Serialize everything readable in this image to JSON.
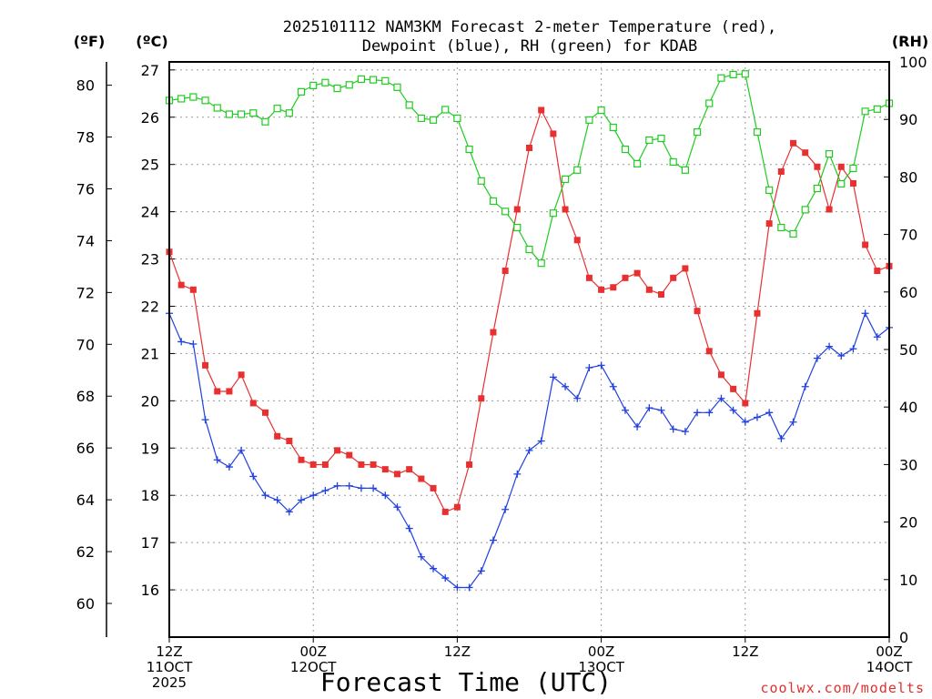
{
  "title_line1": "2025101112 NAM3KM Forecast 2-meter Temperature (red),",
  "title_line2": "Dewpoint (blue), RH (green) for KDAB",
  "chart_data": {
    "type": "line",
    "title": "2025101112 NAM3KM Forecast 2-meter Temperature (red), Dewpoint (blue), RH (green) for KDAB",
    "xlabel": "Forecast Time (UTC)",
    "x_unit": "forecast hour (0 = 12Z 11OCT 2025)",
    "xlim": [
      0,
      60
    ],
    "x_ticks": [
      {
        "hour": 0,
        "lines": [
          "12Z",
          "11OCT",
          "2025"
        ]
      },
      {
        "hour": 12,
        "lines": [
          "00Z",
          "12OCT"
        ]
      },
      {
        "hour": 24,
        "lines": [
          "12Z"
        ]
      },
      {
        "hour": 36,
        "lines": [
          "00Z",
          "13OCT"
        ]
      },
      {
        "hour": 48,
        "lines": [
          "12Z"
        ]
      },
      {
        "hour": 60,
        "lines": [
          "00Z",
          "14OCT"
        ]
      }
    ],
    "axes": {
      "fahrenheit": {
        "label": "(ºF)",
        "min": 58.7,
        "max": 80.9,
        "ticks": [
          60,
          62,
          64,
          66,
          68,
          70,
          72,
          74,
          76,
          78,
          80
        ]
      },
      "celsius": {
        "label": "(ºC)",
        "min": 15,
        "max": 27.17,
        "ticks": [
          16,
          17,
          18,
          19,
          20,
          21,
          22,
          23,
          24,
          25,
          26,
          27
        ]
      },
      "rh": {
        "label": "(RH)",
        "min": 0,
        "max": 100,
        "ticks": [
          0,
          10,
          20,
          30,
          40,
          50,
          60,
          70,
          80,
          90,
          100
        ]
      }
    },
    "grid": true,
    "series": [
      {
        "name": "2-meter Temperature",
        "unit": "°C",
        "color": "#e83030",
        "marker": "filled-square",
        "values": [
          [
            0,
            23.15
          ],
          [
            1,
            22.45
          ],
          [
            2,
            22.35
          ],
          [
            3,
            20.75
          ],
          [
            4,
            20.2
          ],
          [
            5,
            20.2
          ],
          [
            6,
            20.55
          ],
          [
            7,
            19.95
          ],
          [
            8,
            19.75
          ],
          [
            9,
            19.25
          ],
          [
            10,
            19.15
          ],
          [
            11,
            18.75
          ],
          [
            12,
            18.65
          ],
          [
            13,
            18.65
          ],
          [
            14,
            18.95
          ],
          [
            15,
            18.85
          ],
          [
            16,
            18.65
          ],
          [
            17,
            18.65
          ],
          [
            18,
            18.55
          ],
          [
            19,
            18.45
          ],
          [
            20,
            18.55
          ],
          [
            21,
            18.35
          ],
          [
            22,
            18.15
          ],
          [
            23,
            17.65
          ],
          [
            24,
            17.75
          ],
          [
            25,
            18.65
          ],
          [
            26,
            20.05
          ],
          [
            27,
            21.45
          ],
          [
            28,
            22.75
          ],
          [
            29,
            24.05
          ],
          [
            30,
            25.35
          ],
          [
            31,
            26.15
          ],
          [
            32,
            25.65
          ],
          [
            33,
            24.05
          ],
          [
            34,
            23.4
          ],
          [
            35,
            22.6
          ],
          [
            36,
            22.35
          ],
          [
            37,
            22.4
          ],
          [
            38,
            22.6
          ],
          [
            39,
            22.7
          ],
          [
            40,
            22.35
          ],
          [
            41,
            22.25
          ],
          [
            42,
            22.6
          ],
          [
            43,
            22.8
          ],
          [
            44,
            21.9
          ],
          [
            45,
            21.05
          ],
          [
            46,
            20.55
          ],
          [
            47,
            20.25
          ],
          [
            48,
            19.95
          ],
          [
            49,
            21.85
          ],
          [
            50,
            23.75
          ],
          [
            51,
            24.85
          ],
          [
            52,
            25.45
          ],
          [
            53,
            25.25
          ],
          [
            54,
            24.95
          ],
          [
            55,
            24.05
          ],
          [
            56,
            24.95
          ],
          [
            57,
            24.6
          ],
          [
            58,
            23.3
          ],
          [
            59,
            22.75
          ],
          [
            60,
            22.85
          ]
        ]
      },
      {
        "name": "Dewpoint",
        "unit": "°C",
        "color": "#2040e0",
        "marker": "plus",
        "values": [
          [
            0,
            21.85
          ],
          [
            1,
            21.25
          ],
          [
            2,
            21.2
          ],
          [
            3,
            19.6
          ],
          [
            4,
            18.75
          ],
          [
            5,
            18.6
          ],
          [
            6,
            18.95
          ],
          [
            7,
            18.4
          ],
          [
            8,
            18.0
          ],
          [
            9,
            17.9
          ],
          [
            10,
            17.65
          ],
          [
            11,
            17.9
          ],
          [
            12,
            18.0
          ],
          [
            13,
            18.1
          ],
          [
            14,
            18.2
          ],
          [
            15,
            18.2
          ],
          [
            16,
            18.15
          ],
          [
            17,
            18.15
          ],
          [
            18,
            18.0
          ],
          [
            19,
            17.75
          ],
          [
            20,
            17.3
          ],
          [
            21,
            16.7
          ],
          [
            22,
            16.45
          ],
          [
            23,
            16.25
          ],
          [
            24,
            16.05
          ],
          [
            25,
            16.05
          ],
          [
            26,
            16.4
          ],
          [
            27,
            17.05
          ],
          [
            28,
            17.7
          ],
          [
            29,
            18.45
          ],
          [
            30,
            18.95
          ],
          [
            31,
            19.15
          ],
          [
            32,
            20.5
          ],
          [
            33,
            20.3
          ],
          [
            34,
            20.05
          ],
          [
            35,
            20.7
          ],
          [
            36,
            20.75
          ],
          [
            37,
            20.3
          ],
          [
            38,
            19.8
          ],
          [
            39,
            19.45
          ],
          [
            40,
            19.85
          ],
          [
            41,
            19.8
          ],
          [
            42,
            19.4
          ],
          [
            43,
            19.35
          ],
          [
            44,
            19.75
          ],
          [
            45,
            19.75
          ],
          [
            46,
            20.05
          ],
          [
            47,
            19.8
          ],
          [
            48,
            19.55
          ],
          [
            49,
            19.65
          ],
          [
            50,
            19.75
          ],
          [
            51,
            19.2
          ],
          [
            52,
            19.55
          ],
          [
            53,
            20.3
          ],
          [
            54,
            20.9
          ],
          [
            55,
            21.15
          ],
          [
            56,
            20.95
          ],
          [
            57,
            21.1
          ],
          [
            58,
            21.85
          ],
          [
            59,
            21.35
          ],
          [
            60,
            21.55
          ]
        ]
      },
      {
        "name": "RH",
        "unit": "%",
        "color": "#20cc20",
        "marker": "open-square",
        "values": [
          [
            0,
            93.3
          ],
          [
            1,
            93.6
          ],
          [
            2,
            93.9
          ],
          [
            3,
            93.3
          ],
          [
            4,
            92.0
          ],
          [
            5,
            90.9
          ],
          [
            6,
            90.9
          ],
          [
            7,
            91.1
          ],
          [
            8,
            89.6
          ],
          [
            9,
            91.9
          ],
          [
            10,
            91.1
          ],
          [
            11,
            94.8
          ],
          [
            12,
            95.9
          ],
          [
            13,
            96.4
          ],
          [
            14,
            95.4
          ],
          [
            15,
            96.0
          ],
          [
            16,
            97.0
          ],
          [
            17,
            96.9
          ],
          [
            18,
            96.7
          ],
          [
            19,
            95.6
          ],
          [
            20,
            92.5
          ],
          [
            21,
            90.2
          ],
          [
            22,
            89.9
          ],
          [
            23,
            91.7
          ],
          [
            24,
            90.2
          ],
          [
            25,
            84.8
          ],
          [
            26,
            79.3
          ],
          [
            27,
            75.8
          ],
          [
            28,
            74.0
          ],
          [
            29,
            71.2
          ],
          [
            30,
            67.4
          ],
          [
            31,
            65.0
          ],
          [
            32,
            73.7
          ],
          [
            33,
            79.6
          ],
          [
            34,
            81.2
          ],
          [
            35,
            89.9
          ],
          [
            36,
            91.6
          ],
          [
            37,
            88.6
          ],
          [
            38,
            84.8
          ],
          [
            39,
            82.3
          ],
          [
            40,
            86.4
          ],
          [
            41,
            86.7
          ],
          [
            42,
            82.6
          ],
          [
            43,
            81.2
          ],
          [
            44,
            87.8
          ],
          [
            45,
            92.8
          ],
          [
            46,
            97.2
          ],
          [
            47,
            97.8
          ],
          [
            48,
            97.9
          ],
          [
            49,
            87.8
          ],
          [
            50,
            77.7
          ],
          [
            51,
            71.2
          ],
          [
            52,
            70.1
          ],
          [
            53,
            74.3
          ],
          [
            54,
            78.0
          ],
          [
            55,
            84.0
          ],
          [
            56,
            78.8
          ],
          [
            57,
            81.5
          ],
          [
            58,
            91.4
          ],
          [
            59,
            91.8
          ],
          [
            60,
            92.8
          ]
        ]
      }
    ]
  },
  "credit": "coolwx.com/modelts"
}
